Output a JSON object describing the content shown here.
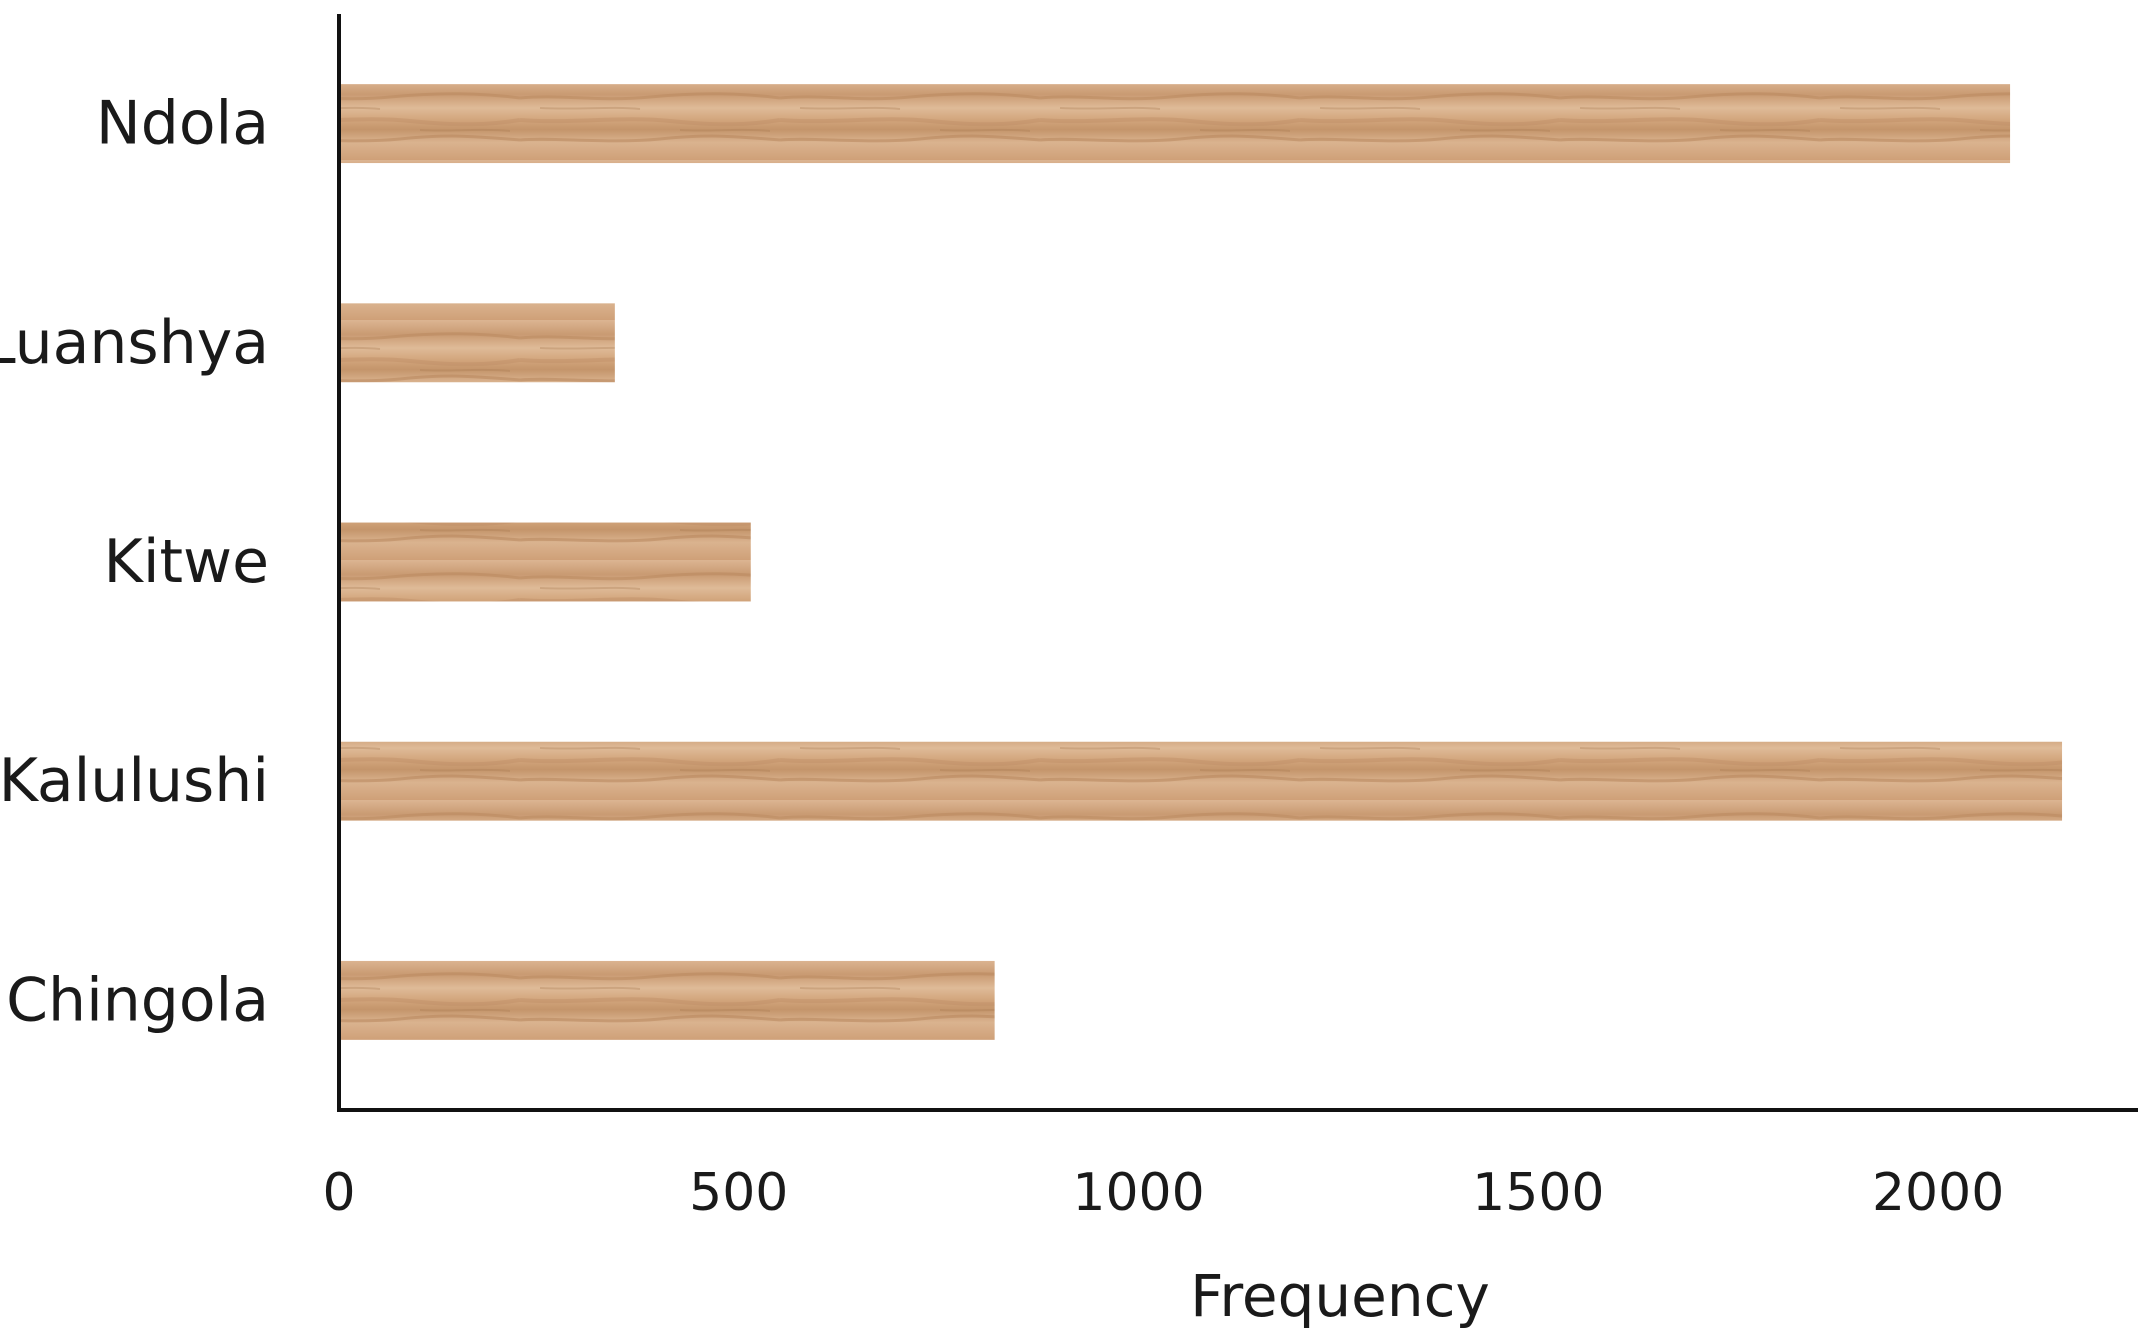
{
  "chart_data": {
    "type": "bar",
    "orientation": "horizontal",
    "categories": [
      "Ndola",
      "Luanshya",
      "Kitwe",
      "Kalulushi",
      "Chingola"
    ],
    "values": [
      2090,
      345,
      515,
      2155,
      820
    ],
    "title": "",
    "xlabel": "Frequency",
    "ylabel": "",
    "xlim": [
      0,
      2250
    ],
    "xticks": [
      "0",
      "500",
      "1000",
      "1500",
      "2000"
    ],
    "grid": false,
    "legend": "none",
    "bar_color": "#d4a882",
    "bar_texture": "wood-grain"
  }
}
